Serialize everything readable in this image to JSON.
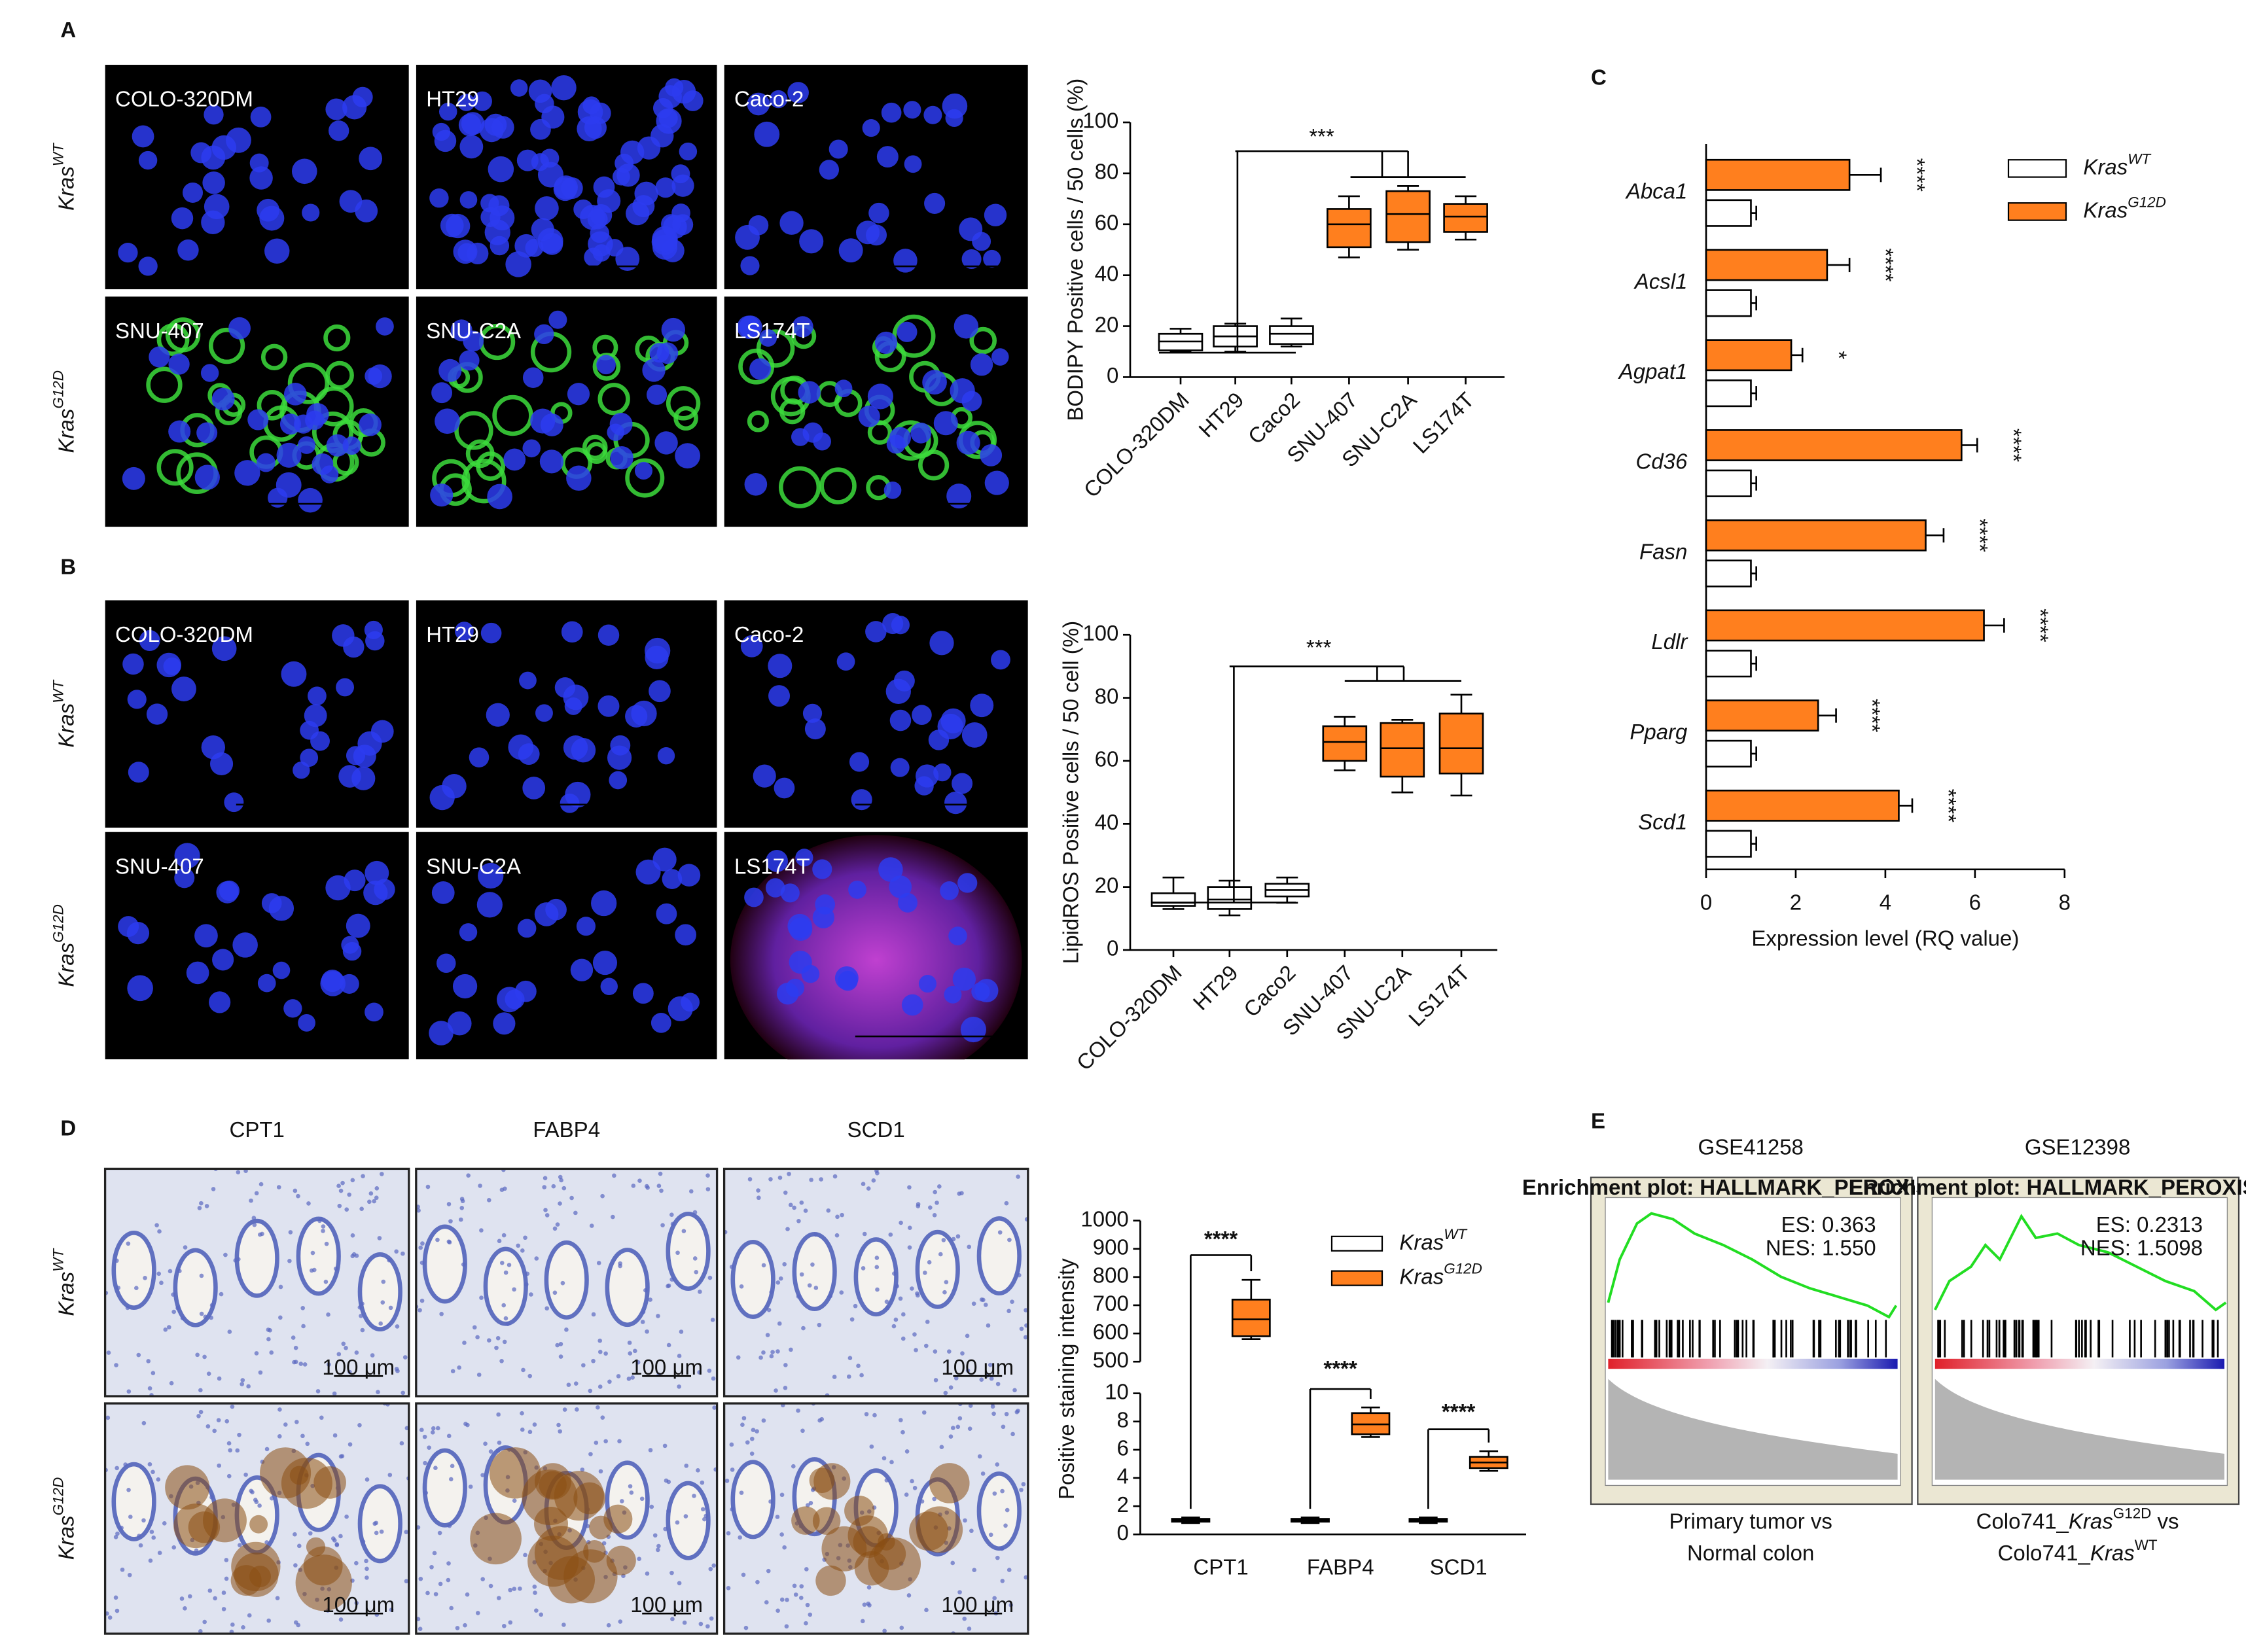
{
  "figure": {
    "panel_labels": [
      "A",
      "B",
      "C",
      "D",
      "E"
    ],
    "genotype_labels": [
      {
        "text": "Kras",
        "sup": "WT"
      },
      {
        "text": "Kras",
        "sup": "G12D"
      }
    ],
    "panel_a_images": [
      [
        "COLO-320DM",
        "HT29",
        "Caco-2"
      ],
      [
        "SNU-407",
        "SNU-C2A",
        "LS174T"
      ]
    ],
    "panel_b_images": [
      [
        "COLO-320DM",
        "HT29",
        "Caco-2"
      ],
      [
        "SNU-407",
        "SNU-C2A",
        "LS174T"
      ]
    ],
    "panel_d_columns": [
      "CPT1",
      "FABP4",
      "SCD1"
    ],
    "scale_bar": "100 μm",
    "panel_e": {
      "titles": [
        "GSE41258",
        "GSE12398"
      ],
      "plot_title": "Enrichment plot: HALLMARK_PEROXISOME",
      "stats": [
        [
          "ES: 0.363",
          "NES: 1.550"
        ],
        [
          "ES: 0.2313",
          "NES: 1.5098"
        ]
      ],
      "captions": [
        [
          [
            "Primary tumor vs"
          ],
          [
            "Normal colon"
          ]
        ],
        [
          [
            "Colo741_",
            "Kras",
            "G12D",
            " vs"
          ],
          [
            "Colo741_",
            "Kras",
            "WT"
          ]
        ]
      ]
    }
  },
  "chart_data": [
    {
      "type": "box",
      "y_label": "BODIPY Positive cells / 50 cells (%)",
      "categories": [
        "COLO-320DM",
        "HT29",
        "Caco2",
        "SNU-407",
        "SNU-C2A",
        "LS174T"
      ],
      "colors": [
        "#ffffff",
        "#ffffff",
        "#ffffff",
        "#ff7f1e",
        "#ff7f1e",
        "#ff7f1e"
      ],
      "boxes": [
        {
          "min": 10,
          "q1": 10.5,
          "median": 14,
          "q3": 17,
          "max": 19
        },
        {
          "min": 10,
          "q1": 12,
          "median": 16,
          "q3": 20,
          "max": 21
        },
        {
          "min": 12,
          "q1": 13,
          "median": 17,
          "q3": 20,
          "max": 23
        },
        {
          "min": 47,
          "q1": 51,
          "median": 60,
          "q3": 66,
          "max": 71
        },
        {
          "min": 50,
          "q1": 53,
          "median": 64,
          "q3": 73,
          "max": 75
        },
        {
          "min": 54,
          "q1": 57,
          "median": 63,
          "q3": 68,
          "max": 71
        }
      ],
      "ylim": [
        0,
        100
      ],
      "yticks": [
        0,
        20,
        40,
        60,
        80,
        100
      ],
      "annotation": "***"
    },
    {
      "type": "box",
      "y_label": "LipidROS Positive cells / 50 cell (%)",
      "categories": [
        "COLO-320DM",
        "HT29",
        "Caco2",
        "SNU-407",
        "SNU-C2A",
        "LS174T"
      ],
      "colors": [
        "#ffffff",
        "#ffffff",
        "#ffffff",
        "#ff7f1e",
        "#ff7f1e",
        "#ff7f1e"
      ],
      "boxes": [
        {
          "min": 13,
          "q1": 14,
          "median": 15,
          "q3": 18,
          "max": 23
        },
        {
          "min": 11,
          "q1": 13,
          "median": 16,
          "q3": 20,
          "max": 22
        },
        {
          "min": 15,
          "q1": 17,
          "median": 19,
          "q3": 21,
          "max": 23
        },
        {
          "min": 57,
          "q1": 60,
          "median": 66,
          "q3": 71,
          "max": 74
        },
        {
          "min": 50,
          "q1": 55,
          "median": 64,
          "q3": 72,
          "max": 73
        },
        {
          "min": 49,
          "q1": 56,
          "median": 64,
          "q3": 75,
          "max": 81
        }
      ],
      "ylim": [
        0,
        100
      ],
      "yticks": [
        0,
        20,
        40,
        60,
        80,
        100
      ],
      "annotation": "***"
    },
    {
      "type": "hbar",
      "x_label": "Expression level (RQ value)",
      "categories": [
        "Abca1",
        "Acsl1",
        "Agpat1",
        "Cd36",
        "Fasn",
        "Ldlr",
        "Pparg",
        "Scd1"
      ],
      "series": [
        {
          "name": "Kras",
          "sup": "WT",
          "color": "#ffffff",
          "values": [
            1,
            1,
            1,
            1,
            1,
            1,
            1,
            1
          ],
          "errors": [
            0.12,
            0.12,
            0.12,
            0.12,
            0.12,
            0.12,
            0.12,
            0.12
          ]
        },
        {
          "name": "Kras",
          "sup": "G12D",
          "color": "#ff7f1e",
          "values": [
            3.2,
            2.7,
            1.9,
            5.7,
            4.9,
            6.2,
            2.5,
            4.3
          ],
          "errors": [
            0.7,
            0.5,
            0.25,
            0.35,
            0.4,
            0.45,
            0.4,
            0.3
          ],
          "significance": [
            "****",
            "****",
            "*",
            "****",
            "****",
            "****",
            "****",
            "****"
          ]
        }
      ],
      "xlim": [
        0,
        8
      ],
      "xticks": [
        0,
        2,
        4,
        6,
        8
      ]
    },
    {
      "type": "grouped_box",
      "y_label": "Positive staining intensity",
      "categories": [
        "CPT1",
        "FABP4",
        "SCD1"
      ],
      "series": [
        {
          "name": "Kras",
          "sup": "WT",
          "color": "#ffffff",
          "boxes": [
            {
              "min": 0.8,
              "q1": 0.9,
              "median": 1,
              "q3": 1.1,
              "max": 1.2
            },
            {
              "min": 0.8,
              "q1": 0.9,
              "median": 1,
              "q3": 1.1,
              "max": 1.2
            },
            {
              "min": 0.8,
              "q1": 0.9,
              "median": 1,
              "q3": 1.1,
              "max": 1.2
            }
          ]
        },
        {
          "name": "Kras",
          "sup": "G12D",
          "color": "#ff7f1e",
          "boxes": [
            {
              "min": 580,
              "q1": 590,
              "median": 650,
              "q3": 720,
              "max": 790
            },
            {
              "min": 6.9,
              "q1": 7.1,
              "median": 7.8,
              "q3": 8.6,
              "max": 9
            },
            {
              "min": 4.5,
              "q1": 4.7,
              "median": 5.1,
              "q3": 5.5,
              "max": 5.9
            }
          ]
        }
      ],
      "ylim": [
        0,
        1000
      ],
      "ybreak": [
        10,
        500
      ],
      "yticks": [
        0,
        2,
        4,
        6,
        8,
        10,
        500,
        600,
        700,
        800,
        900,
        1000
      ],
      "annotations": [
        "****",
        "****",
        "****"
      ]
    }
  ]
}
